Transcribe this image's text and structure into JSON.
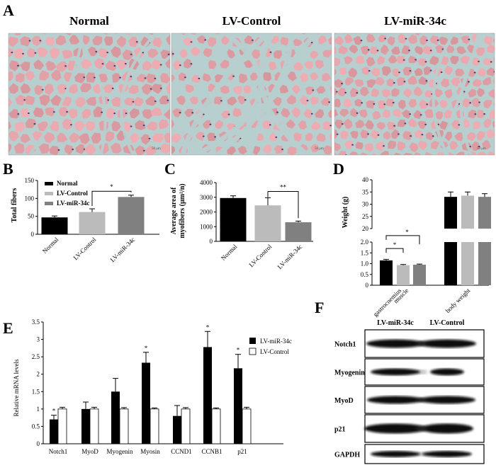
{
  "panel_letters": {
    "a": "A",
    "b": "B",
    "c": "C",
    "d": "D",
    "e": "E",
    "f": "F"
  },
  "histology": {
    "titles": [
      "Normal",
      "LV-Control",
      "LV-miR-34c"
    ],
    "scale_bar": "50 μm",
    "colors": {
      "fiber": "#d7a3a6",
      "stroma": "#b7cfcf",
      "nucleus": "#3e3a78"
    }
  },
  "chart_data": [
    {
      "id": "B",
      "type": "bar",
      "categories": [
        "Normal",
        "LV-Control",
        "LV-miR-34c"
      ],
      "values": [
        47,
        62,
        104
      ],
      "errors": [
        4,
        9,
        5
      ],
      "colors": [
        "#000000",
        "#bbbbbb",
        "#808080"
      ],
      "ylabel": "Total fibers",
      "ylim": [
        0,
        150
      ],
      "yticks": [
        0,
        50,
        100,
        150
      ],
      "legend": [
        "Normal",
        "LV-Control",
        "LV-miR-34c"
      ],
      "legend_position": "top-left",
      "significance": [
        {
          "from": 1,
          "to": 2,
          "label": "*"
        }
      ]
    },
    {
      "id": "C",
      "type": "bar",
      "categories": [
        "Normal",
        "LV-Control",
        "LV-miR-34c"
      ],
      "values": [
        2950,
        2450,
        1300
      ],
      "errors": [
        150,
        520,
        80
      ],
      "colors": [
        "#000000",
        "#bbbbbb",
        "#808080"
      ],
      "ylabel_lines": [
        "Average area of",
        "myofibers (μm²/n)"
      ],
      "ylim": [
        0,
        4000
      ],
      "yticks": [
        0,
        1000,
        2000,
        3000,
        4000
      ],
      "significance": [
        {
          "from": 1,
          "to": 2,
          "label": "**"
        }
      ]
    },
    {
      "id": "D",
      "type": "bar",
      "categories": [
        "gastrocnemius muscle",
        "body weight"
      ],
      "series": [
        {
          "values": [
            1.15,
            33.0
          ],
          "errors": [
            0.05,
            2.0
          ]
        },
        {
          "values": [
            0.93,
            33.5
          ],
          "errors": [
            0.03,
            1.5
          ]
        },
        {
          "values": [
            0.95,
            33.0
          ],
          "errors": [
            0.03,
            1.3
          ]
        }
      ],
      "colors": [
        "#000000",
        "#bbbbbb",
        "#808080"
      ],
      "ylabel": "Weight (g)",
      "ylim_lower": [
        0,
        2.0
      ],
      "yticks_lower": [
        0,
        0.5,
        1.0,
        1.5,
        2.0
      ],
      "ylim_upper": [
        20,
        40
      ],
      "yticks_upper": [
        20,
        25,
        30,
        35,
        40
      ],
      "broken_axis": true,
      "significance": [
        {
          "group": 0,
          "from": 0,
          "to": 1,
          "label": "*"
        },
        {
          "group": 0,
          "from": 0,
          "to": 2,
          "label": "*"
        }
      ]
    },
    {
      "id": "E",
      "type": "bar",
      "categories": [
        "Notch1",
        "MyoD",
        "Myogenin",
        "Myosin",
        "CCND1",
        "CCNB1",
        "p21"
      ],
      "series": [
        {
          "name": "LV-miR-34c",
          "values": [
            0.7,
            1.0,
            1.5,
            2.33,
            0.8,
            2.78,
            2.17
          ],
          "errors": [
            0.12,
            0.2,
            0.38,
            0.3,
            0.3,
            0.45,
            0.4
          ]
        },
        {
          "name": "LV-Control",
          "values": [
            1.0,
            1.0,
            1.0,
            1.0,
            1.0,
            1.0,
            1.0
          ],
          "errors": [
            0.05,
            0.05,
            0.04,
            0.03,
            0.04,
            0.03,
            0.05
          ]
        }
      ],
      "significant": [
        true,
        false,
        false,
        true,
        false,
        true,
        true
      ],
      "ylabel": "Relative mRNA levels",
      "ylim": [
        0,
        3.5
      ],
      "yticks": [
        0,
        0.5,
        1,
        1.5,
        2,
        2.5,
        3,
        3.5
      ],
      "ytick_labels": [
        "0",
        "0.5",
        "1",
        "1.5",
        "2",
        "2.5",
        "3",
        "3.5"
      ],
      "legend_position": "top-right",
      "star": "*"
    }
  ],
  "western_blot": {
    "columns": [
      "LV-miR-34c",
      "LV-Control"
    ],
    "rows": [
      "Notch1",
      "Myogenin",
      "MyoD",
      "p21",
      "GAPDH"
    ]
  }
}
